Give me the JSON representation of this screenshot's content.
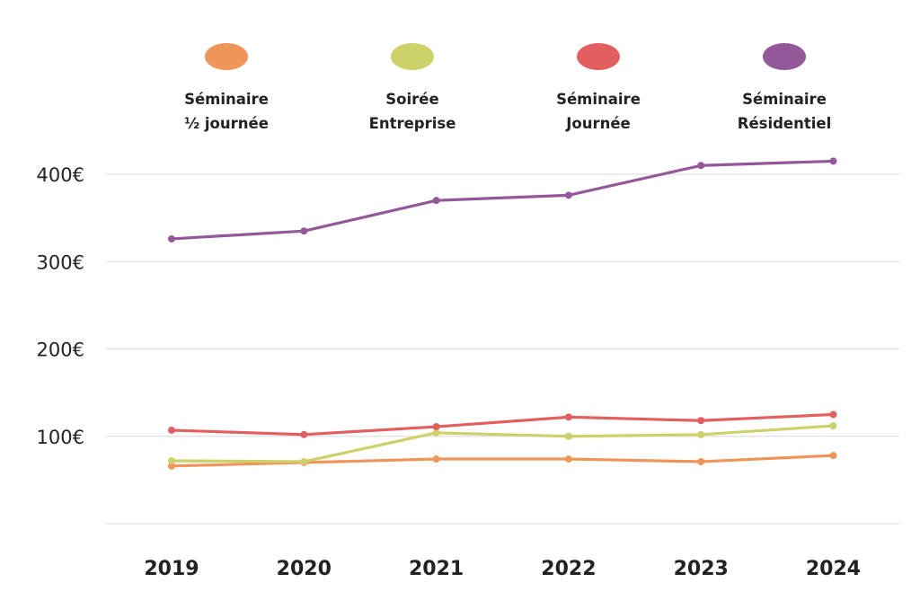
{
  "chart_data": {
    "type": "line",
    "title": "",
    "xlabel": "",
    "ylabel": "",
    "categories": [
      "2019",
      "2020",
      "2021",
      "2022",
      "2023",
      "2024"
    ],
    "ylim": [
      0,
      400
    ],
    "yticks": [
      100,
      200,
      300,
      400
    ],
    "ytick_labels": [
      "100€",
      "200€",
      "300€",
      "400€"
    ],
    "grid": true,
    "legend_position": "top",
    "series": [
      {
        "name": "Séminaire ½ journée",
        "label_lines": [
          "Séminaire",
          "½ journée"
        ],
        "color": "#f0955a",
        "values": [
          66,
          70,
          74,
          74,
          71,
          78
        ]
      },
      {
        "name": "Soirée Entreprise",
        "label_lines": [
          "Soirée",
          "Entreprise"
        ],
        "color": "#cdd16a",
        "values": [
          72,
          71,
          104,
          100,
          102,
          112
        ]
      },
      {
        "name": "Séminaire Journée",
        "label_lines": [
          "Séminaire",
          "Journée"
        ],
        "color": "#e35f5f",
        "values": [
          107,
          102,
          111,
          122,
          118,
          125
        ]
      },
      {
        "name": "Séminaire Résidentiel",
        "label_lines": [
          "Séminaire",
          "Résidentiel"
        ],
        "color": "#93589a",
        "values": [
          326,
          335,
          370,
          376,
          410,
          415
        ]
      }
    ]
  }
}
